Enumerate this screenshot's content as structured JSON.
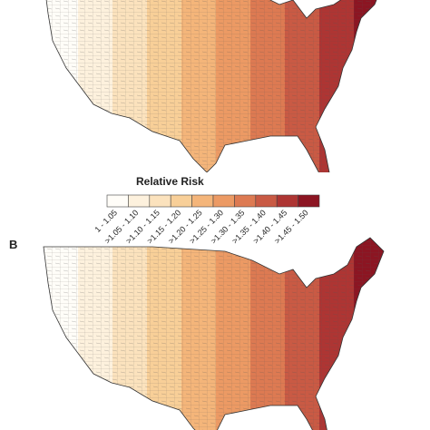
{
  "panel_label": "B",
  "legend": {
    "title": "Relative Risk",
    "items": [
      {
        "label": "1 - 1.05",
        "color": "#fffdf8"
      },
      {
        "label": ">1.05 - 1.10",
        "color": "#fdf1dd"
      },
      {
        "label": ">1.10 - 1.15",
        "color": "#fbe2bd"
      },
      {
        "label": ">1.15 - 1.20",
        "color": "#f8cf98"
      },
      {
        "label": ">1.20 - 1.25",
        "color": "#f4b57a"
      },
      {
        "label": ">1.25 - 1.30",
        "color": "#ec9a64"
      },
      {
        "label": ">1.30 - 1.35",
        "color": "#dd7a52"
      },
      {
        "label": ">1.35 - 1.40",
        "color": "#c95a44"
      },
      {
        "label": ">1.40 - 1.45",
        "color": "#ae3533"
      },
      {
        "label": ">1.45 - 1.50",
        "color": "#8c1522"
      }
    ]
  }
}
